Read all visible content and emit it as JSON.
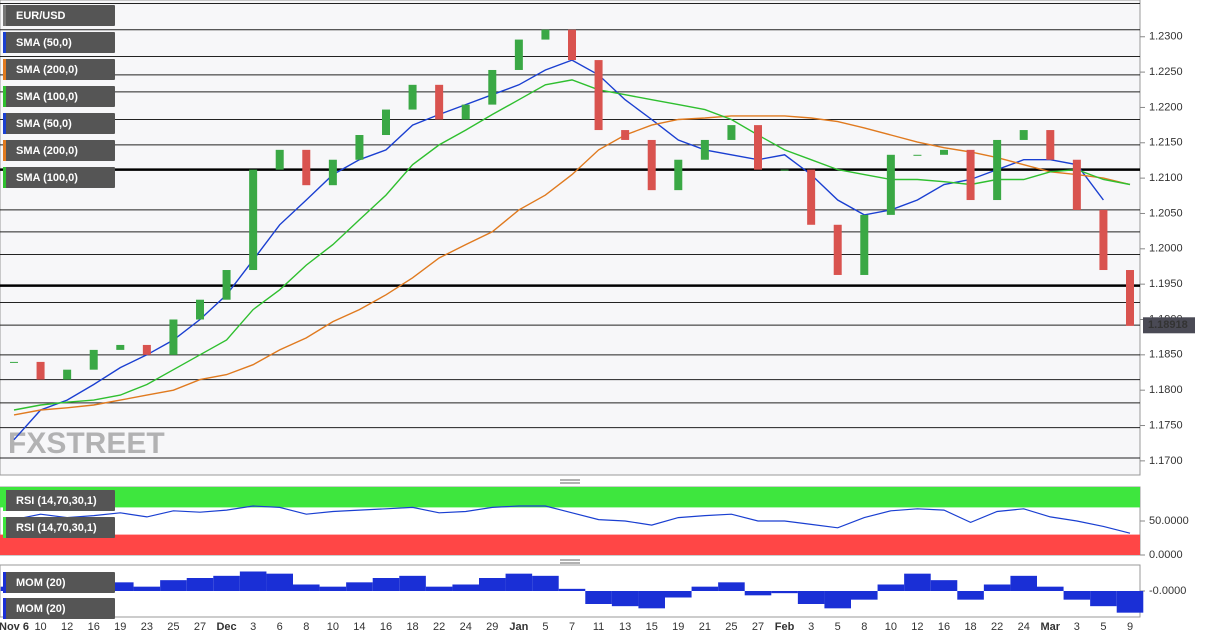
{
  "chart_data": [
    {
      "type": "candlestick",
      "title": "EUR/USD",
      "categories": [
        "Nov 6",
        "10",
        "12",
        "16",
        "19",
        "23",
        "25",
        "27",
        "Dec",
        "3",
        "6",
        "8",
        "10",
        "14",
        "16",
        "18",
        "22",
        "24",
        "29",
        "Jan",
        "5",
        "7",
        "11",
        "13",
        "15",
        "19",
        "21",
        "25",
        "27",
        "Feb",
        "3",
        "5",
        "8",
        "10",
        "12",
        "16",
        "18",
        "22",
        "24",
        "Mar",
        "3",
        "5",
        "9"
      ],
      "values": [
        1.184,
        1.1815,
        1.1829,
        1.1857,
        1.1864,
        1.185,
        1.19,
        1.1928,
        1.197,
        1.2112,
        1.214,
        1.209,
        1.2126,
        1.2161,
        1.2197,
        1.2232,
        1.2183,
        1.2204,
        1.2253,
        1.2296,
        1.231,
        1.2267,
        1.2168,
        1.2154,
        1.2083,
        1.2126,
        1.2154,
        1.2175,
        1.2112,
        1.2112,
        1.2034,
        1.1963,
        1.2048,
        1.2133,
        1.2133,
        1.214,
        1.2069,
        1.2154,
        1.2168,
        1.2126,
        1.2055,
        1.197,
        1.1891
      ],
      "up_color": "#3aa845",
      "down_color": "#d9534f",
      "series": [
        {
          "name": "SMA (50,0)",
          "color": "#1a3fd1",
          "values": [
            1.173,
            1.1772,
            1.1786,
            1.1808,
            1.1832,
            1.185,
            1.1871,
            1.19,
            1.1935,
            1.1984,
            1.2034,
            1.2069,
            1.2105,
            1.2126,
            1.214,
            1.2175,
            1.219,
            1.2204,
            1.2218,
            1.2232,
            1.2253,
            1.2267,
            1.2246,
            1.2211,
            1.2183,
            1.2154,
            1.214,
            1.2133,
            1.2126,
            1.2133,
            1.2105,
            1.2069,
            1.2048,
            1.2055,
            1.2069,
            1.2091,
            1.2098,
            1.2112,
            1.2126,
            1.2126,
            1.2119,
            1.2069,
            null
          ]
        },
        {
          "name": "SMA (200,0)",
          "color": "#e07a1f",
          "values": [
            1.1765,
            1.1772,
            1.1775,
            1.1779,
            1.1786,
            1.1793,
            1.18,
            1.1815,
            1.1822,
            1.1836,
            1.1857,
            1.1874,
            1.1897,
            1.1914,
            1.1935,
            1.1959,
            1.1987,
            1.2006,
            1.2024,
            1.2055,
            1.2076,
            1.2105,
            1.214,
            1.2161,
            1.2175,
            1.2183,
            1.2185,
            1.2188,
            1.2188,
            1.2188,
            1.2185,
            1.218,
            1.2171,
            1.2161,
            1.2151,
            1.2143,
            1.2137,
            1.2129,
            1.2119,
            1.2109,
            1.2105,
            1.21,
            1.2091
          ]
        },
        {
          "name": "SMA (100,0)",
          "color": "#2fbf2f",
          "values": [
            1.1772,
            1.1779,
            1.1783,
            1.1786,
            1.1793,
            1.1808,
            1.1829,
            1.185,
            1.1871,
            1.1914,
            1.1942,
            1.1977,
            1.2006,
            1.2041,
            1.2076,
            1.2119,
            1.2147,
            1.2168,
            1.219,
            1.2211,
            1.2232,
            1.2239,
            1.2225,
            1.2218,
            1.2211,
            1.2204,
            1.2197,
            1.2183,
            1.2161,
            1.214,
            1.2126,
            1.2112,
            1.2105,
            1.2098,
            1.2098,
            1.2095,
            1.2091,
            1.2098,
            1.2098,
            1.2109,
            1.2112,
            1.2098,
            1.2091
          ]
        }
      ],
      "ylim": [
        1.168,
        1.2352
      ],
      "yticks": [
        {
          "value": 1.23,
          "label": "1.2300"
        },
        {
          "value": 1.225,
          "label": "1.2250"
        },
        {
          "value": 1.22,
          "label": "1.2200"
        },
        {
          "value": 1.215,
          "label": "1.2150"
        },
        {
          "value": 1.21,
          "label": "1.2100"
        },
        {
          "value": 1.205,
          "label": "1.2050"
        },
        {
          "value": 1.2,
          "label": "1.2000"
        },
        {
          "value": 1.195,
          "label": "1.1950"
        },
        {
          "value": 1.19,
          "label": "1.1900"
        },
        {
          "value": 1.185,
          "label": "1.1850"
        },
        {
          "value": 1.18,
          "label": "1.1800"
        },
        {
          "value": 1.175,
          "label": "1.1750"
        },
        {
          "value": 1.17,
          "label": "1.1700"
        }
      ],
      "levels": [
        1.2347,
        1.231,
        1.2272,
        1.2246,
        1.2222,
        1.2183,
        1.2147,
        1.2055,
        1.2024,
        1.1992,
        1.1924,
        1.1892,
        1.185,
        1.1815,
        1.1782,
        1.1747,
        1.1704
      ],
      "key_levels": [
        1.2112,
        1.1948
      ],
      "last_price": 1.18918,
      "watermark": "FXSTREET"
    },
    {
      "type": "line",
      "label": "RSI (14,70,30,1)",
      "color": "#1a3fd1",
      "values": [
        52,
        60,
        55,
        58,
        62,
        56,
        65,
        63,
        66,
        72,
        70,
        60,
        64,
        66,
        68,
        70,
        62,
        64,
        70,
        72,
        72,
        62,
        52,
        50,
        44,
        55,
        58,
        60,
        50,
        50,
        45,
        40,
        55,
        65,
        68,
        66,
        48,
        64,
        68,
        56,
        50,
        42,
        32
      ],
      "ylim": [
        0,
        100
      ],
      "yticks": [
        {
          "value": 50,
          "label": "50.0000"
        },
        {
          "value": 0,
          "label": "0.0000"
        }
      ],
      "overbought": 70,
      "oversold": 30,
      "overbought_color": "#3ee63e",
      "oversold_color": "#ff4646"
    },
    {
      "type": "histogram",
      "label": "MOM (20)",
      "color": "#1a2fd6",
      "values": [
        0.002,
        0.004,
        0.003,
        0.005,
        0.004,
        0.002,
        0.005,
        0.006,
        0.007,
        0.009,
        0.008,
        0.003,
        0.002,
        0.004,
        0.006,
        0.007,
        0.002,
        0.003,
        0.006,
        0.008,
        0.007,
        0.001,
        -0.006,
        -0.007,
        -0.008,
        -0.003,
        0.002,
        0.004,
        -0.002,
        -0.001,
        -0.006,
        -0.008,
        -0.004,
        0.003,
        0.008,
        0.005,
        -0.004,
        0.003,
        0.007,
        0.002,
        -0.004,
        -0.007,
        -0.01
      ],
      "ylim": [
        -0.012,
        0.012
      ],
      "yticks": [
        {
          "value": 0,
          "label": "-0.0000"
        }
      ]
    }
  ]
}
